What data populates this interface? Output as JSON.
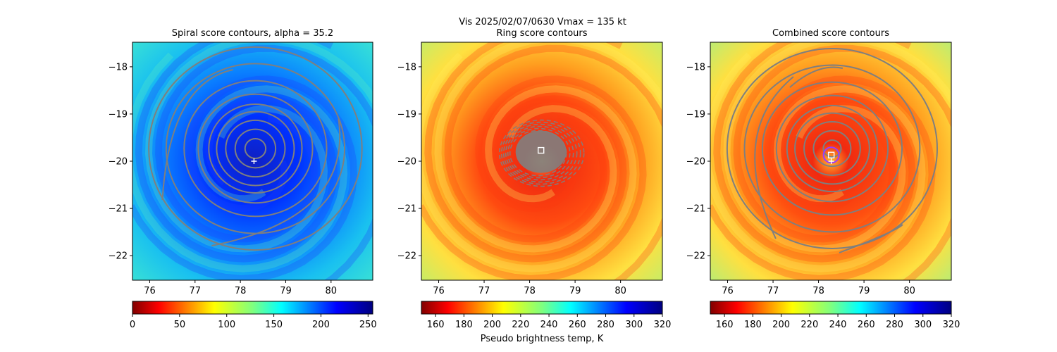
{
  "suptitle": "Vis  2025/02/07/0630    Vmax = 135 kt",
  "colors": {
    "contour": "#7f7f7f",
    "center_marker": "#ffffff",
    "ring_marker": "#9a3cff"
  },
  "chart_data": [
    {
      "type": "heatmap",
      "title": "Spiral score contours, alpha = 35.2",
      "xlim": [
        75.62,
        80.92
      ],
      "ylim": [
        -22.52,
        -17.48
      ],
      "xticks": [
        76,
        77,
        78,
        79,
        80
      ],
      "yticks": [
        -18,
        -19,
        -20,
        -21,
        -22
      ],
      "colormap": "jet_r",
      "contours": "concentric rings around center",
      "colorbar": {
        "range": [
          0,
          255
        ],
        "ticks": [
          0,
          50,
          100,
          150,
          200,
          250
        ],
        "label": ""
      },
      "center": [
        78.3,
        -20.0
      ]
    },
    {
      "type": "heatmap",
      "title": "Ring score contours",
      "xlim": [
        75.62,
        80.92
      ],
      "ylim": [
        -22.52,
        -17.48
      ],
      "xticks": [
        76,
        77,
        78,
        79,
        80
      ],
      "yticks": [
        -18,
        -19,
        -20,
        -21,
        -22
      ],
      "colormap": "jet_r",
      "contours": "dense blob at eye",
      "eye": [
        78.25,
        -19.77
      ],
      "colorbar": {
        "range": [
          150,
          320
        ],
        "ticks": [
          160,
          180,
          200,
          220,
          240,
          260,
          280,
          300,
          320
        ],
        "label": "Pseudo brightness temp, K"
      }
    },
    {
      "type": "heatmap",
      "title": "Combined score contours",
      "xlim": [
        75.62,
        80.92
      ],
      "ylim": [
        -22.52,
        -17.48
      ],
      "xticks": [
        76,
        77,
        78,
        79,
        80
      ],
      "yticks": [
        -18,
        -19,
        -20,
        -21,
        -22
      ],
      "colormap": "jet_r",
      "contours": "concentric rings around center",
      "eye": [
        78.28,
        -19.87
      ],
      "center": [
        78.28,
        -20.0
      ],
      "colorbar": {
        "range": [
          150,
          320
        ],
        "ticks": [
          160,
          180,
          200,
          220,
          240,
          260,
          280,
          300,
          320
        ],
        "label": ""
      }
    }
  ]
}
